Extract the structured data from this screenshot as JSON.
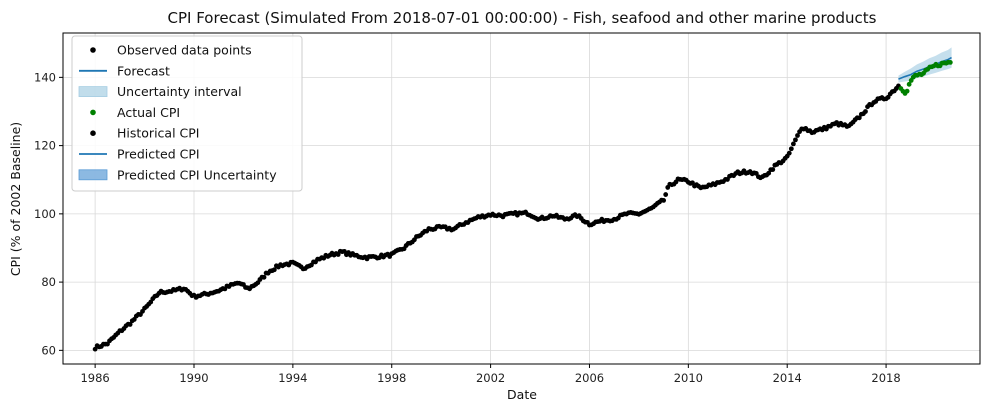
{
  "chart_data": {
    "type": "line",
    "title": "CPI Forecast (Simulated From 2018-07-01 00:00:00) - Fish, seafood and other marine products",
    "xlabel": "Date",
    "ylabel": "CPI (% of 2002 Baseline)",
    "xlim": [
      1984.7,
      2021.8
    ],
    "ylim": [
      56,
      153
    ],
    "xticks": [
      1986,
      1990,
      1994,
      1998,
      2002,
      2006,
      2010,
      2014,
      2018
    ],
    "yticks": [
      60,
      80,
      100,
      120,
      140
    ],
    "grid": true,
    "legend_position": "top-left",
    "legend": [
      {
        "label": "Observed data points",
        "kind": "dot",
        "color": "#000000"
      },
      {
        "label": "Forecast",
        "kind": "line",
        "color": "#1f77b4"
      },
      {
        "label": "Uncertainty interval",
        "kind": "patch",
        "color": "#a6cee3"
      },
      {
        "label": "Actual CPI",
        "kind": "dot",
        "color": "#008000"
      },
      {
        "label": "Historical CPI",
        "kind": "dot",
        "color": "#000000"
      },
      {
        "label": "Predicted CPI",
        "kind": "line",
        "color": "#1f77b4"
      },
      {
        "label": "Predicted CPI Uncertainty",
        "kind": "patch",
        "color": "#5b9bd5"
      }
    ],
    "colors": {
      "historical": "#000000",
      "actual": "#008000",
      "forecast": "#1f77b4",
      "band": "#a6cee3"
    },
    "historical_anchors": [
      [
        1986.0,
        60.8
      ],
      [
        1986.5,
        62.0
      ],
      [
        1987.0,
        65.5
      ],
      [
        1987.5,
        68.5
      ],
      [
        1988.0,
        72.0
      ],
      [
        1988.6,
        77.0
      ],
      [
        1989.2,
        77.5
      ],
      [
        1989.6,
        78.2
      ],
      [
        1990.0,
        75.8
      ],
      [
        1990.5,
        76.5
      ],
      [
        1991.0,
        77.5
      ],
      [
        1991.5,
        79.0
      ],
      [
        1991.8,
        79.8
      ],
      [
        1992.2,
        78.0
      ],
      [
        1992.6,
        80.0
      ],
      [
        1993.0,
        83.0
      ],
      [
        1993.5,
        85.0
      ],
      [
        1994.0,
        85.5
      ],
      [
        1994.4,
        84.0
      ],
      [
        1995.0,
        86.5
      ],
      [
        1995.5,
        88.0
      ],
      [
        1996.0,
        88.8
      ],
      [
        1996.5,
        87.8
      ],
      [
        1997.0,
        87.2
      ],
      [
        1997.5,
        87.5
      ],
      [
        1998.0,
        88.0
      ],
      [
        1998.5,
        90.0
      ],
      [
        1999.0,
        93.0
      ],
      [
        1999.5,
        95.5
      ],
      [
        2000.0,
        96.0
      ],
      [
        2000.5,
        95.5
      ],
      [
        2001.0,
        97.5
      ],
      [
        2001.5,
        99.0
      ],
      [
        2002.0,
        99.8
      ],
      [
        2002.5,
        99.5
      ],
      [
        2003.0,
        100.0
      ],
      [
        2003.5,
        100.2
      ],
      [
        2004.0,
        98.5
      ],
      [
        2004.5,
        99.5
      ],
      [
        2005.0,
        98.5
      ],
      [
        2005.5,
        99.5
      ],
      [
        2006.0,
        97.0
      ],
      [
        2006.5,
        98.0
      ],
      [
        2007.0,
        98.5
      ],
      [
        2007.5,
        100.0
      ],
      [
        2008.0,
        100.0
      ],
      [
        2008.5,
        101.5
      ],
      [
        2009.0,
        104.0
      ],
      [
        2009.2,
        108.0
      ],
      [
        2009.6,
        110.0
      ],
      [
        2010.0,
        109.5
      ],
      [
        2010.5,
        107.5
      ],
      [
        2011.0,
        108.5
      ],
      [
        2011.5,
        110.0
      ],
      [
        2012.0,
        112.0
      ],
      [
        2012.5,
        112.5
      ],
      [
        2013.0,
        110.5
      ],
      [
        2013.5,
        114.0
      ],
      [
        2014.0,
        116.5
      ],
      [
        2014.3,
        121.0
      ],
      [
        2014.6,
        125.5
      ],
      [
        2015.0,
        124.0
      ],
      [
        2015.5,
        125.0
      ],
      [
        2016.0,
        126.5
      ],
      [
        2016.5,
        125.5
      ],
      [
        2017.0,
        129.0
      ],
      [
        2017.5,
        133.0
      ],
      [
        2018.0,
        134.0
      ],
      [
        2018.5,
        137.5
      ]
    ],
    "actual_anchors": [
      [
        2018.6,
        137.0
      ],
      [
        2018.8,
        135.5
      ],
      [
        2019.0,
        139.0
      ],
      [
        2019.2,
        140.5
      ],
      [
        2019.5,
        141.0
      ],
      [
        2019.75,
        142.5
      ],
      [
        2020.0,
        143.5
      ],
      [
        2020.3,
        144.0
      ],
      [
        2020.6,
        144.5
      ]
    ],
    "forecast": {
      "x": [
        2018.5,
        2018.75,
        2019.0,
        2019.25,
        2019.5,
        2019.75,
        2020.0,
        2020.25,
        2020.5,
        2020.65
      ],
      "y": [
        139.5,
        140.2,
        140.8,
        141.8,
        142.4,
        143.2,
        143.8,
        144.6,
        145.2,
        145.8
      ],
      "lower": [
        138.5,
        138.8,
        139.0,
        139.8,
        140.2,
        140.8,
        141.3,
        141.9,
        142.4,
        142.8
      ],
      "upper": [
        140.5,
        141.6,
        142.6,
        143.8,
        144.6,
        145.6,
        146.3,
        147.3,
        148.0,
        148.8
      ]
    }
  }
}
